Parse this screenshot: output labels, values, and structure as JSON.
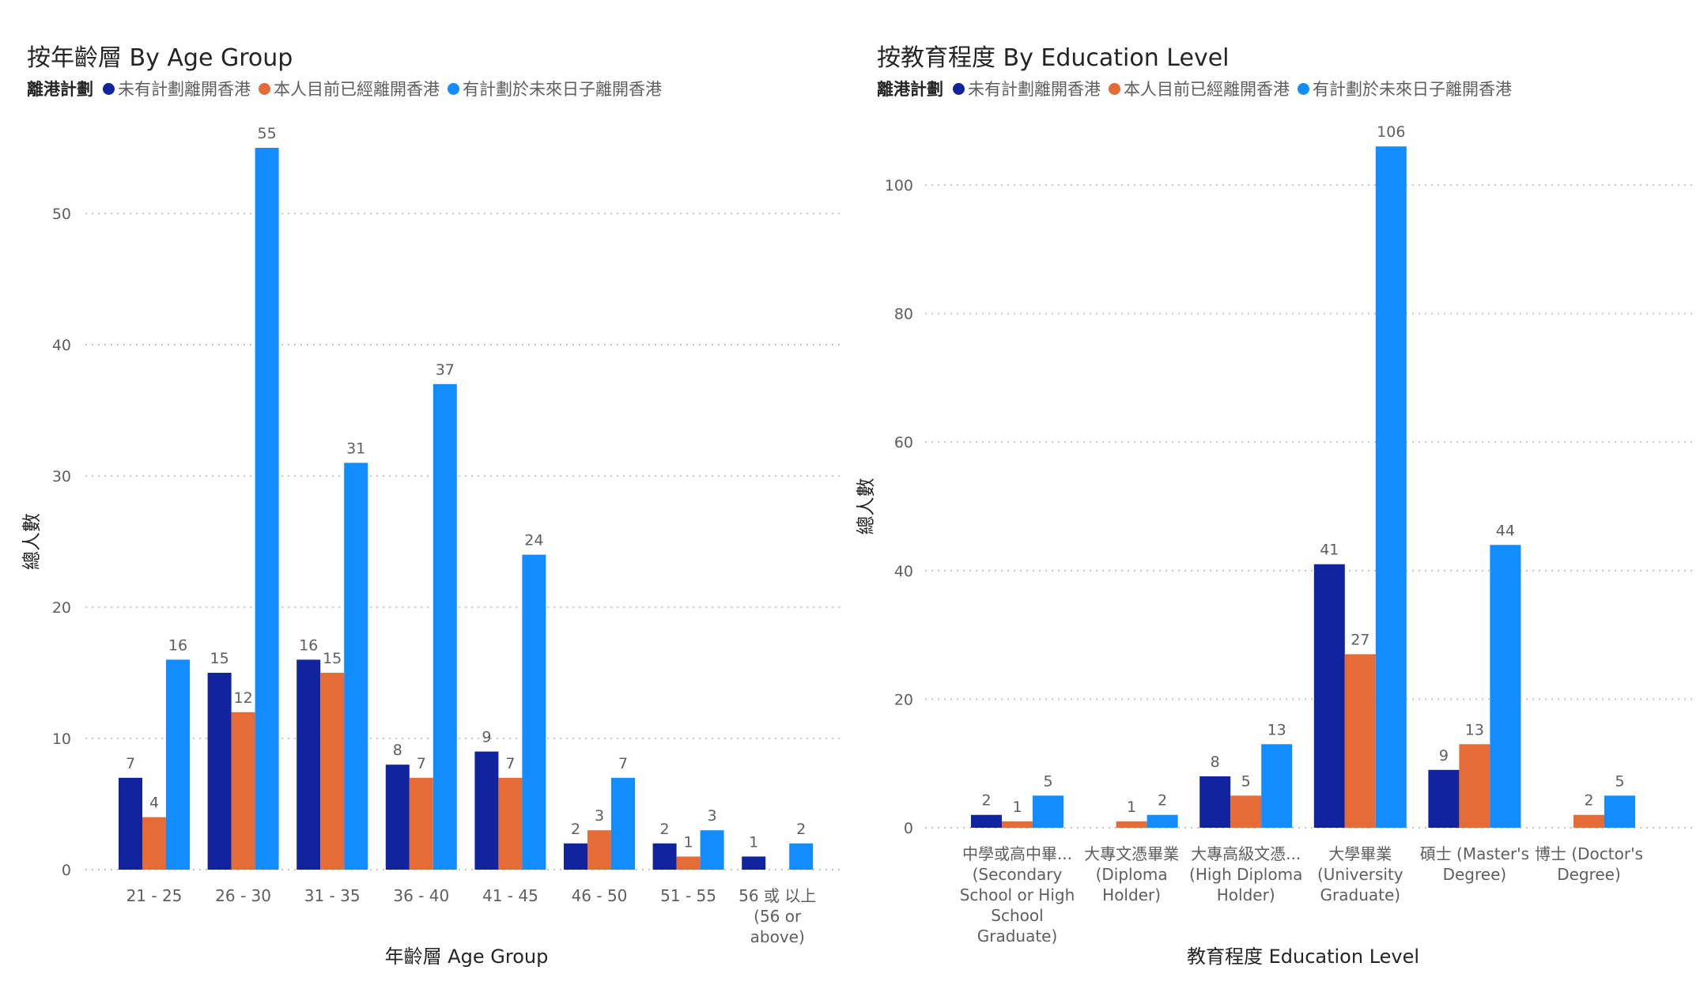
{
  "legend": {
    "title": "離港計劃",
    "items": [
      {
        "label": "未有計劃離開香港",
        "color": "#12239E"
      },
      {
        "label": "本人目前已經離開香港",
        "color": "#E66C37"
      },
      {
        "label": "有計劃於未來日子離開香港",
        "color": "#118DFF"
      }
    ]
  },
  "chart_data": [
    {
      "type": "bar",
      "title": "按年齡層 By Age Group",
      "xlabel": "年齡層 Age Group",
      "ylabel": "總人數",
      "ylim": [
        0,
        55
      ],
      "yticks": [
        0,
        10,
        20,
        30,
        40,
        50
      ],
      "grid": true,
      "legend_position": "top-left",
      "categories": [
        [
          "21 - 25"
        ],
        [
          "26 - 30"
        ],
        [
          "31 - 35"
        ],
        [
          "36 - 40"
        ],
        [
          "41 - 45"
        ],
        [
          "46 - 50"
        ],
        [
          "51 - 55"
        ],
        [
          "56 或 以上",
          "(56 or",
          "above)"
        ]
      ],
      "series": [
        {
          "name": "未有計劃離開香港",
          "color": "#12239E",
          "values": [
            7,
            15,
            16,
            8,
            9,
            2,
            2,
            1
          ]
        },
        {
          "name": "本人目前已經離開香港",
          "color": "#E66C37",
          "values": [
            4,
            12,
            15,
            7,
            7,
            3,
            1,
            null
          ]
        },
        {
          "name": "有計劃於未來日子離開香港",
          "color": "#118DFF",
          "values": [
            16,
            55,
            31,
            37,
            24,
            7,
            3,
            2
          ]
        }
      ]
    },
    {
      "type": "bar",
      "title": "按教育程度 By Education Level",
      "xlabel": "教育程度 Education Level",
      "ylabel": "總人數",
      "ylim": [
        0,
        106
      ],
      "yticks": [
        0,
        20,
        40,
        60,
        80,
        100
      ],
      "grid": true,
      "legend_position": "top-left",
      "categories": [
        [
          "中學或高中畢...",
          "(Secondary",
          "School or High",
          "School",
          "Graduate)"
        ],
        [
          "大專文憑畢業",
          "(Diploma",
          "Holder)"
        ],
        [
          "大專高級文憑...",
          "(High Diploma",
          "Holder)"
        ],
        [
          "大學畢業",
          "(University",
          "Graduate)"
        ],
        [
          "碩士 (Master's",
          "Degree)"
        ],
        [
          "博士 (Doctor's",
          "Degree)"
        ]
      ],
      "series": [
        {
          "name": "未有計劃離開香港",
          "color": "#12239E",
          "values": [
            2,
            null,
            8,
            41,
            9,
            null
          ]
        },
        {
          "name": "本人目前已經離開香港",
          "color": "#E66C37",
          "values": [
            1,
            1,
            5,
            27,
            13,
            2
          ]
        },
        {
          "name": "有計劃於未來日子離開香港",
          "color": "#118DFF",
          "values": [
            5,
            2,
            13,
            106,
            44,
            5
          ]
        }
      ]
    }
  ]
}
